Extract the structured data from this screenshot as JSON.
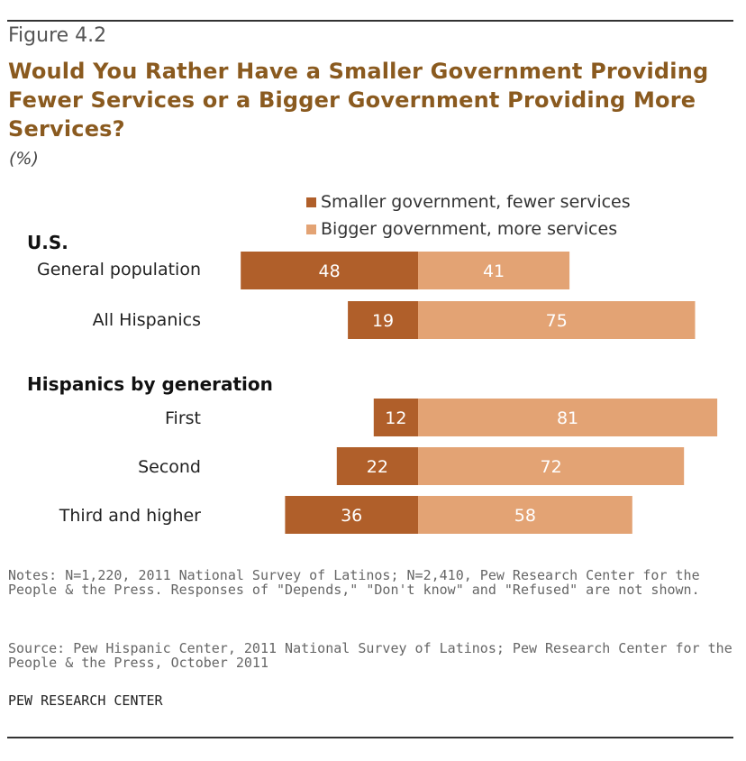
{
  "figure_label": "Figure 4.2",
  "title": "Would You Rather Have a Smaller Government Providing Fewer Services or a Bigger Government Providing More Services?",
  "unit": "(%)",
  "colors": {
    "smaller": "#b05f2a",
    "bigger": "#e3a374"
  },
  "sections": {
    "us": "U.S.",
    "generation": "Hispanics by generation"
  },
  "notes": "Notes: N=1,220, 2011 National Survey of Latinos; N=2,410, Pew Research Center for the People & the Press. Responses of \"Depends,\" \"Don't know\" and \"Refused\" are not shown.",
  "source": "Source: Pew Hispanic Center, 2011 National Survey of Latinos; Pew Research Center for the People & the Press, October 2011",
  "org": "PEW RESEARCH CENTER",
  "chart_data": {
    "type": "bar",
    "orientation": "horizontal-diverging",
    "categories": [
      "General population",
      "All Hispanics",
      "First",
      "Second",
      "Third and higher"
    ],
    "series": [
      {
        "name": "Smaller government, fewer services",
        "values": [
          48,
          19,
          12,
          22,
          36
        ]
      },
      {
        "name": "Bigger government, more services",
        "values": [
          41,
          75,
          81,
          72,
          58
        ]
      }
    ],
    "legend_position": "top"
  }
}
